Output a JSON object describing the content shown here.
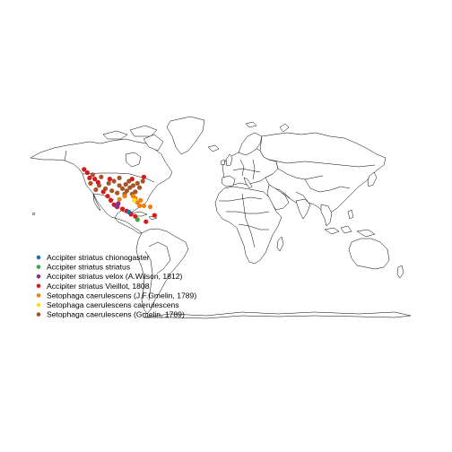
{
  "legend": {
    "entries": [
      {
        "label": "Accipiter striatus chionogaster",
        "color": "#1f6fb5"
      },
      {
        "label": "Accipiter striatus striatus",
        "color": "#3ba846"
      },
      {
        "label": "Accipiter striatus velox (A.Wilson, 1812)",
        "color": "#8e2e8e"
      },
      {
        "label": "Accipiter striatus Vieillot, 1808",
        "color": "#d7191c"
      },
      {
        "label": "Setophaga caerulescens (J.F.Gmelin, 1789)",
        "color": "#f07f12"
      },
      {
        "label": "Setophaga caerulescens caerulescens",
        "color": "#f5e11a"
      },
      {
        "label": "Setophaga caerulescens (Gmelin, 1789)",
        "color": "#a65628"
      }
    ]
  },
  "points": [
    {
      "species": 6,
      "lon": -120,
      "lat": 48
    },
    {
      "species": 6,
      "lon": -112,
      "lat": 46
    },
    {
      "species": 6,
      "lon": -100,
      "lat": 42
    },
    {
      "species": 6,
      "lon": -95,
      "lat": 38
    },
    {
      "species": 6,
      "lon": -92,
      "lat": 35
    },
    {
      "species": 6,
      "lon": -88,
      "lat": 33
    },
    {
      "species": 6,
      "lon": -85,
      "lat": 36
    },
    {
      "species": 6,
      "lon": -82,
      "lat": 38
    },
    {
      "species": 6,
      "lon": -78,
      "lat": 40
    },
    {
      "species": 6,
      "lon": -76,
      "lat": 36
    },
    {
      "species": 6,
      "lon": -80,
      "lat": 32
    },
    {
      "species": 6,
      "lon": -83,
      "lat": 30
    },
    {
      "species": 6,
      "lon": -90,
      "lat": 30
    },
    {
      "species": 6,
      "lon": -97,
      "lat": 31
    },
    {
      "species": 6,
      "lon": -102,
      "lat": 33
    },
    {
      "species": 6,
      "lon": -108,
      "lat": 35
    },
    {
      "species": 6,
      "lon": -114,
      "lat": 38
    },
    {
      "species": 6,
      "lon": -117,
      "lat": 34
    },
    {
      "species": 6,
      "lon": -122,
      "lat": 40
    },
    {
      "species": 6,
      "lon": -86,
      "lat": 42
    },
    {
      "species": 6,
      "lon": -89,
      "lat": 39
    },
    {
      "species": 6,
      "lon": -73,
      "lat": 42
    },
    {
      "species": 6,
      "lon": -105,
      "lat": 40
    },
    {
      "species": 6,
      "lon": -95,
      "lat": 45
    },
    {
      "species": 4,
      "lon": -80,
      "lat": 26
    },
    {
      "species": 4,
      "lon": -82,
      "lat": 28
    },
    {
      "species": 4,
      "lon": -78,
      "lat": 22
    },
    {
      "species": 4,
      "lon": -76,
      "lat": 19
    },
    {
      "species": 4,
      "lon": -72,
      "lat": 19
    },
    {
      "species": 4,
      "lon": -66,
      "lat": 18
    },
    {
      "species": 4,
      "lon": -95,
      "lat": 25
    },
    {
      "species": 4,
      "lon": -90,
      "lat": 28
    },
    {
      "species": 4,
      "lon": -75,
      "lat": 24
    },
    {
      "species": 3,
      "lon": -123,
      "lat": 45
    },
    {
      "species": 3,
      "lon": -118,
      "lat": 44
    },
    {
      "species": 3,
      "lon": -110,
      "lat": 32
    },
    {
      "species": 3,
      "lon": -106,
      "lat": 28
    },
    {
      "species": 3,
      "lon": -103,
      "lat": 24
    },
    {
      "species": 3,
      "lon": -100,
      "lat": 20
    },
    {
      "species": 3,
      "lon": -97,
      "lat": 18
    },
    {
      "species": 3,
      "lon": -92,
      "lat": 16
    },
    {
      "species": 3,
      "lon": -88,
      "lat": 14
    },
    {
      "species": 3,
      "lon": -84,
      "lat": 11
    },
    {
      "species": 3,
      "lon": -80,
      "lat": 9
    },
    {
      "species": 3,
      "lon": -70,
      "lat": 4
    },
    {
      "species": 3,
      "lon": -125,
      "lat": 50
    },
    {
      "species": 3,
      "lon": -128,
      "lat": 53
    },
    {
      "species": 3,
      "lon": -115,
      "lat": 41
    },
    {
      "species": 3,
      "lon": -104,
      "lat": 44
    },
    {
      "species": 3,
      "lon": -72,
      "lat": 46
    },
    {
      "species": 3,
      "lon": -83,
      "lat": 44
    },
    {
      "species": 3,
      "lon": -62,
      "lat": 10
    },
    {
      "species": 2,
      "lon": -98,
      "lat": 19
    },
    {
      "species": 2,
      "lon": -96,
      "lat": 21
    },
    {
      "species": 0,
      "lon": -86,
      "lat": 13
    },
    {
      "species": 1,
      "lon": -78,
      "lat": 6
    },
    {
      "species": 5,
      "lon": -81,
      "lat": 24
    }
  ]
}
